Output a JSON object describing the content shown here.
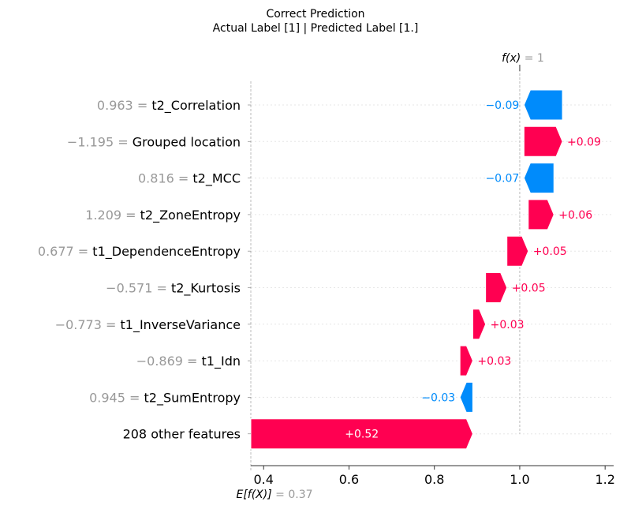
{
  "title": "Correct Prediction",
  "subtitle": "Actual Label [1] | Predicted Label [1.]",
  "chart_data": {
    "type": "waterfall",
    "base_value": 0.37,
    "output_value": 1,
    "fx_label_name": "f(x)",
    "fx_label_value": "= 1",
    "ex_label_name": "E[f(X)]",
    "ex_label_value": "= 0.37",
    "xlim": [
      0.37,
      1.22
    ],
    "xticks": [
      0.4,
      0.6,
      0.8,
      1.0,
      1.2
    ],
    "xtick_labels": [
      "0.4",
      "0.6",
      "0.8",
      "1.0",
      "1.2"
    ],
    "colors": {
      "positive": "#ff0051",
      "negative": "#008bfb",
      "value": "#999999"
    },
    "features": [
      {
        "value": "0.963",
        "name": "t2_Correlation",
        "contribution": -0.09,
        "label": "−0.09"
      },
      {
        "value": "−1.195",
        "name": "Grouped location",
        "contribution": 0.09,
        "label": "+0.09"
      },
      {
        "value": "0.816",
        "name": "t2_MCC",
        "contribution": -0.07,
        "label": "−0.07"
      },
      {
        "value": "1.209",
        "name": "t2_ZoneEntropy",
        "contribution": 0.06,
        "label": "+0.06"
      },
      {
        "value": "0.677",
        "name": "t1_DependenceEntropy",
        "contribution": 0.05,
        "label": "+0.05"
      },
      {
        "value": "−0.571",
        "name": "t2_Kurtosis",
        "contribution": 0.05,
        "label": "+0.05"
      },
      {
        "value": "−0.773",
        "name": "t1_InverseVariance",
        "contribution": 0.03,
        "label": "+0.03"
      },
      {
        "value": "−0.869",
        "name": "t1_Idn",
        "contribution": 0.03,
        "label": "+0.03"
      },
      {
        "value": "0.945",
        "name": "t2_SumEntropy",
        "contribution": -0.03,
        "label": "−0.03"
      },
      {
        "value": "",
        "name": "208 other features",
        "contribution": 0.52,
        "label": "+0.52"
      }
    ]
  }
}
